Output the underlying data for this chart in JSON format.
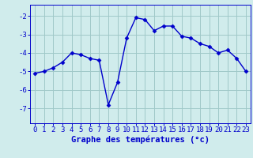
{
  "x": [
    0,
    1,
    2,
    3,
    4,
    5,
    6,
    7,
    8,
    9,
    10,
    11,
    12,
    13,
    14,
    15,
    16,
    17,
    18,
    19,
    20,
    21,
    22,
    23
  ],
  "y": [
    -5.1,
    -5.0,
    -4.8,
    -4.5,
    -4.0,
    -4.1,
    -4.3,
    -4.4,
    -6.8,
    -5.6,
    -3.2,
    -2.1,
    -2.2,
    -2.8,
    -2.55,
    -2.55,
    -3.1,
    -3.2,
    -3.5,
    -3.65,
    -4.0,
    -3.85,
    -4.3,
    -5.0
  ],
  "line_color": "#0000cc",
  "marker": "D",
  "markersize": 2.5,
  "linewidth": 1.0,
  "bg_color": "#d0ecec",
  "grid_color": "#a0c8c8",
  "xlabel": "Graphe des températures (°c)",
  "xlabel_color": "#0000cc",
  "xlabel_fontsize": 7.5,
  "tick_color": "#0000cc",
  "tick_fontsize": 6.5,
  "ytick_values": [
    -7,
    -6,
    -5,
    -4,
    -3,
    -2
  ],
  "ylim": [
    -7.8,
    -1.4
  ],
  "xlim": [
    -0.5,
    23.5
  ]
}
